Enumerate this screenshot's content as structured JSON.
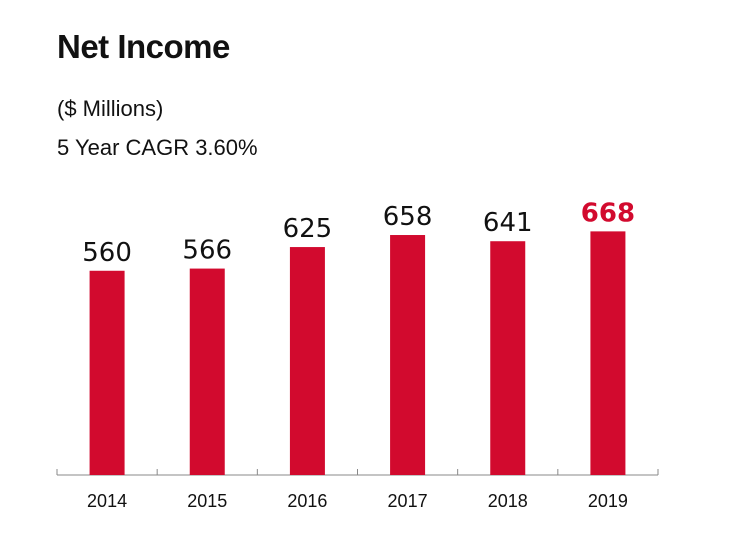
{
  "title": "Net Income",
  "subtitle_lines": [
    "($ Millions)",
    "5 Year CAGR 3.60%"
  ],
  "colors": {
    "bar": "#d20a2e",
    "highlight_label": "#d20a2e",
    "label": "#111111",
    "axis": "#888888"
  },
  "chart_data": {
    "type": "bar",
    "title": "Net Income",
    "subtitle": "($ Millions)",
    "annotation": "5 Year CAGR 3.60%",
    "xlabel": "",
    "ylabel": "",
    "categories": [
      "2014",
      "2015",
      "2016",
      "2017",
      "2018",
      "2019"
    ],
    "values": [
      560,
      566,
      625,
      658,
      641,
      668
    ],
    "data_labels": [
      "560",
      "566",
      "625",
      "658",
      "641",
      "668"
    ],
    "highlight_index": 5,
    "ylim": [
      0,
      850
    ],
    "grid": false,
    "legend": "none"
  }
}
